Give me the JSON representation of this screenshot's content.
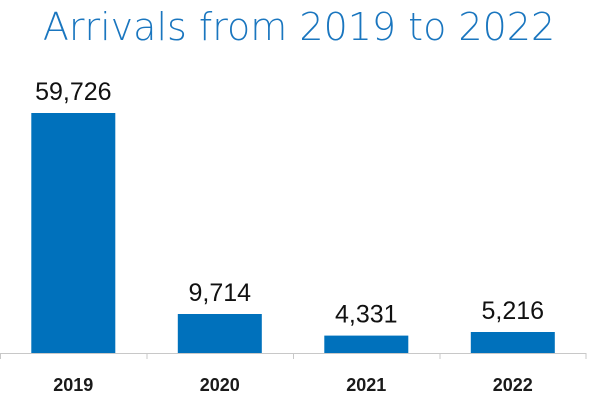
{
  "colors": {
    "bar": "#0071bc",
    "title": "#1a76bf",
    "axis": "#c8c8c8"
  },
  "chart_data": {
    "type": "bar",
    "title": "Arrivals from 2019 to 2022",
    "categories": [
      "2019",
      "2020",
      "2021",
      "2022"
    ],
    "values": [
      59726,
      9714,
      4331,
      5216
    ],
    "value_labels": [
      "59,726",
      "9,714",
      "4,331",
      "5,216"
    ],
    "xlabel": "",
    "ylabel": "",
    "ylim": [
      0,
      59726
    ],
    "grid": false,
    "legend": "none"
  }
}
